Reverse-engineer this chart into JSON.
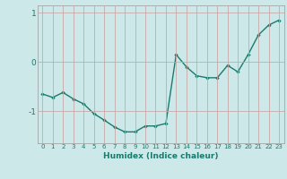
{
  "title": "",
  "xlabel": "Humidex (Indice chaleur)",
  "ylabel": "",
  "x": [
    0,
    1,
    2,
    3,
    4,
    5,
    6,
    7,
    8,
    9,
    10,
    11,
    12,
    13,
    14,
    15,
    16,
    17,
    18,
    19,
    20,
    21,
    22,
    23
  ],
  "y": [
    -0.65,
    -0.72,
    -0.62,
    -0.75,
    -0.85,
    -1.05,
    -1.18,
    -1.32,
    -1.42,
    -1.42,
    -1.3,
    -1.3,
    -1.25,
    0.15,
    -0.1,
    -0.28,
    -0.32,
    -0.32,
    -0.07,
    -0.2,
    0.15,
    0.55,
    0.75,
    0.85
  ],
  "line_color": "#1a7a6e",
  "marker": "D",
  "marker_size": 2.2,
  "bg_color": "#cce8e8",
  "grid_color": "#c8a8a8",
  "tick_label_color": "#1a7a6e",
  "xlabel_color": "#1a7a6e",
  "xlim": [
    -0.5,
    23.5
  ],
  "ylim": [
    -1.65,
    1.15
  ],
  "yticks": [
    -1,
    0,
    1
  ],
  "xticks": [
    0,
    1,
    2,
    3,
    4,
    5,
    6,
    7,
    8,
    9,
    10,
    11,
    12,
    13,
    14,
    15,
    16,
    17,
    18,
    19,
    20,
    21,
    22,
    23
  ]
}
